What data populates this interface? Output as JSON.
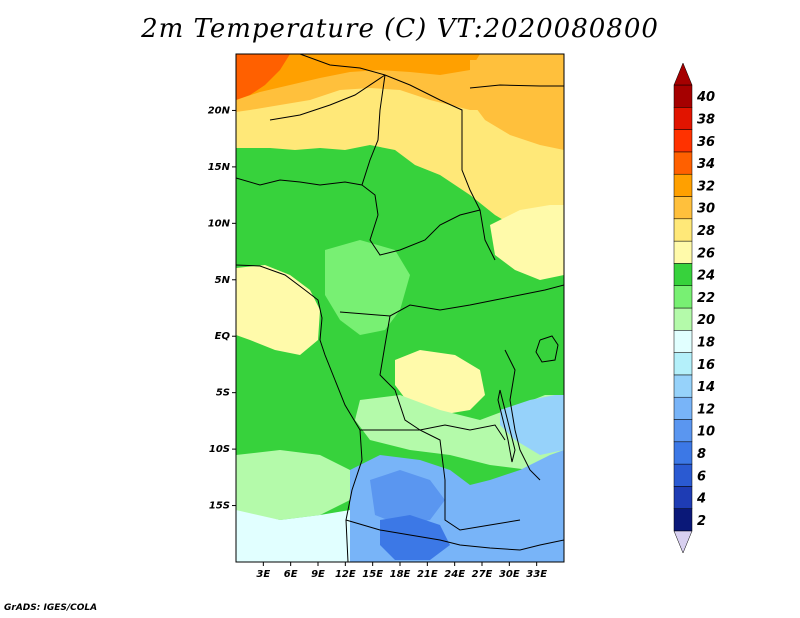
{
  "title": "2m Temperature (C) VT:2020080800",
  "credit": "GrADS: IGES/COLA",
  "map": {
    "lon_range": [
      0,
      36
    ],
    "lat_range": [
      -20,
      25
    ],
    "lat_ticks": [
      {
        "value": 20,
        "label": "20N"
      },
      {
        "value": 15,
        "label": "15N"
      },
      {
        "value": 10,
        "label": "10N"
      },
      {
        "value": 5,
        "label": "5N"
      },
      {
        "value": 0,
        "label": "EQ"
      },
      {
        "value": -5,
        "label": "5S"
      },
      {
        "value": -10,
        "label": "10S"
      },
      {
        "value": -15,
        "label": "15S"
      }
    ],
    "lon_ticks": [
      {
        "value": 3,
        "label": "3E"
      },
      {
        "value": 6,
        "label": "6E"
      },
      {
        "value": 9,
        "label": "9E"
      },
      {
        "value": 12,
        "label": "12E"
      },
      {
        "value": 15,
        "label": "15E"
      },
      {
        "value": 18,
        "label": "18E"
      },
      {
        "value": 21,
        "label": "21E"
      },
      {
        "value": 24,
        "label": "24E"
      },
      {
        "value": 27,
        "label": "27E"
      },
      {
        "value": 30,
        "label": "30E"
      },
      {
        "value": 33,
        "label": "33E"
      }
    ]
  },
  "colorbar": {
    "levels": [
      {
        "value": "2",
        "color": "#0a1878"
      },
      {
        "value": "4",
        "color": "#1e3cb4"
      },
      {
        "value": "6",
        "color": "#2a5ad2"
      },
      {
        "value": "8",
        "color": "#3c78e6"
      },
      {
        "value": "10",
        "color": "#5a96f0"
      },
      {
        "value": "12",
        "color": "#78b4f8"
      },
      {
        "value": "14",
        "color": "#96d2fa"
      },
      {
        "value": "16",
        "color": "#b4f0fa"
      },
      {
        "value": "18",
        "color": "#e1ffff"
      },
      {
        "value": "20",
        "color": "#b4faaa"
      },
      {
        "value": "22",
        "color": "#78f073"
      },
      {
        "value": "24",
        "color": "#37d23c"
      },
      {
        "value": "26",
        "color": "#fffaaa"
      },
      {
        "value": "28",
        "color": "#ffe878"
      },
      {
        "value": "30",
        "color": "#ffc03c"
      },
      {
        "value": "32",
        "color": "#ffa000"
      },
      {
        "value": "34",
        "color": "#ff6000"
      },
      {
        "value": "36",
        "color": "#ff3200"
      },
      {
        "value": "38",
        "color": "#e11400"
      },
      {
        "value": "40",
        "color": "#a50000"
      }
    ]
  }
}
